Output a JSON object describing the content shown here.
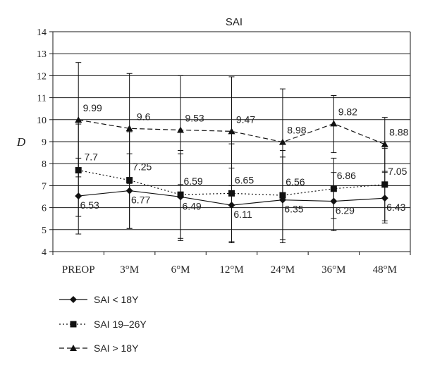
{
  "chart_data": {
    "type": "line",
    "title": "SAI",
    "xlabel": "",
    "ylabel": "D",
    "ylim": [
      4,
      14
    ],
    "yticks": [
      4,
      5,
      6,
      7,
      8,
      9,
      10,
      11,
      12,
      13,
      14
    ],
    "grid": "horizontal",
    "legend_position": "bottom-left",
    "categories": [
      "PREOP",
      "3°M",
      "6°M",
      "12°M",
      "24°M",
      "36°M",
      "48°M"
    ],
    "series": [
      {
        "name": "SAI < 18Y",
        "marker": "diamond",
        "line": "solid",
        "values": [
          6.53,
          6.77,
          6.49,
          6.11,
          6.35,
          6.29,
          6.43
        ],
        "labels": [
          "6.53",
          "6.77",
          "6.49",
          "6.11",
          "6.35",
          "6.29",
          "6.43"
        ],
        "err_low": [
          4.8,
          5.05,
          4.5,
          4.45,
          4.4,
          4.95,
          5.3
        ],
        "err_high": [
          8.25,
          8.45,
          8.45,
          7.8,
          8.3,
          7.6,
          7.6
        ]
      },
      {
        "name": "SAI  19–26Y",
        "marker": "square",
        "line": "dotted",
        "values": [
          7.7,
          7.25,
          6.59,
          6.65,
          6.56,
          6.86,
          7.05
        ],
        "labels": [
          "7.7",
          "7.25",
          "6.59",
          "6.65",
          "6.56",
          "6.86",
          "7.05"
        ],
        "err_low": [
          5.6,
          5.05,
          4.6,
          4.4,
          4.55,
          5.5,
          5.4
        ],
        "err_high": [
          9.8,
          9.45,
          8.6,
          8.9,
          8.6,
          8.25,
          8.7
        ]
      },
      {
        "name": "SAI  > 18Y",
        "marker": "triangle",
        "line": "dashed",
        "values": [
          9.99,
          9.6,
          9.53,
          9.47,
          8.98,
          9.82,
          8.88
        ],
        "labels": [
          "9.99",
          "9.6",
          "9.53",
          "9.47",
          "8.98",
          "9.82",
          "8.88"
        ],
        "err_low": [
          7.4,
          7.1,
          7.05,
          7.0,
          6.55,
          8.5,
          7.65
        ],
        "err_high": [
          12.6,
          12.1,
          12.0,
          11.95,
          11.4,
          11.1,
          10.1
        ]
      }
    ]
  }
}
